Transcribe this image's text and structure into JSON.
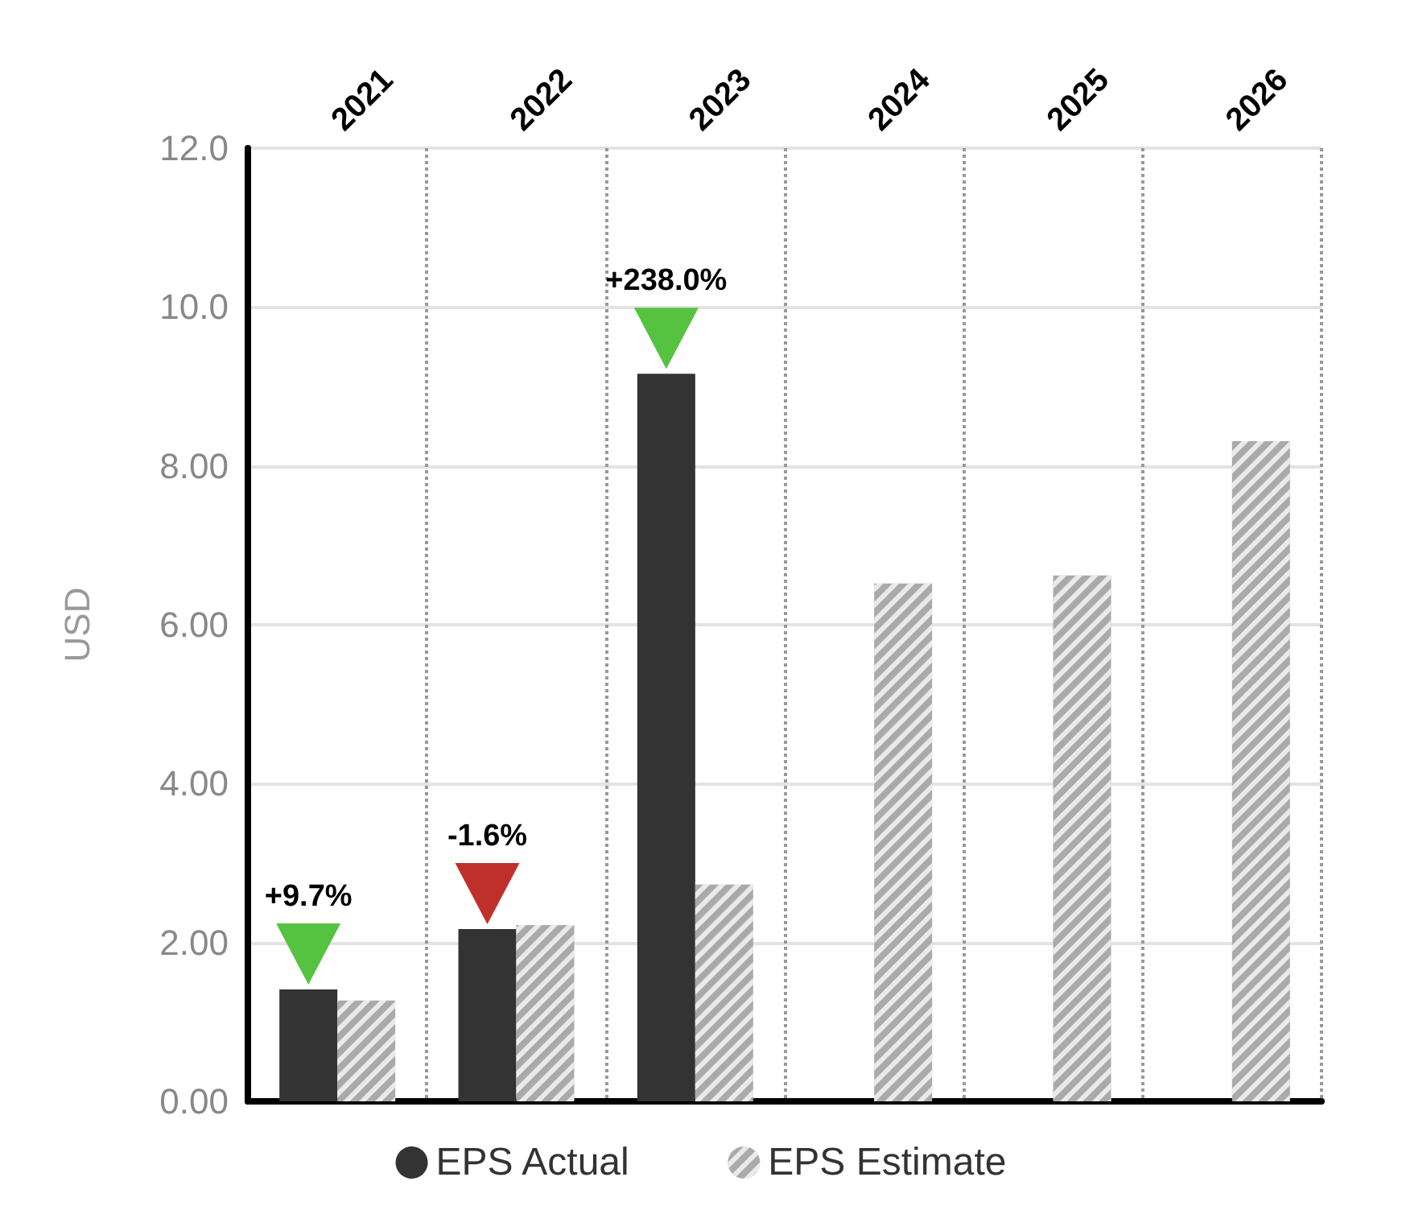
{
  "chart_data": {
    "type": "bar",
    "ylabel": "USD",
    "categories": [
      "2021",
      "2022",
      "2023",
      "2024",
      "2025",
      "2026"
    ],
    "series": [
      {
        "name": "EPS Actual",
        "color": "#333333",
        "values": [
          1.41,
          2.17,
          9.16,
          null,
          null,
          null
        ]
      },
      {
        "name": "EPS Estimate",
        "color": "#aaaaaa",
        "values": [
          1.27,
          2.22,
          2.73,
          6.52,
          6.62,
          8.31
        ]
      }
    ],
    "ylim": [
      0,
      12
    ],
    "yticks": [
      {
        "value": 0,
        "label": "0.00"
      },
      {
        "value": 2,
        "label": "2.00"
      },
      {
        "value": 4,
        "label": "4.00"
      },
      {
        "value": 6,
        "label": "6.00"
      },
      {
        "value": 8,
        "label": "8.00"
      },
      {
        "value": 10,
        "label": "10.0"
      },
      {
        "value": 12,
        "label": "12.0"
      }
    ],
    "annotations": [
      "+9.7%",
      "-1.6%",
      "+238.0%"
    ],
    "grid": true,
    "legend": "bottom"
  }
}
